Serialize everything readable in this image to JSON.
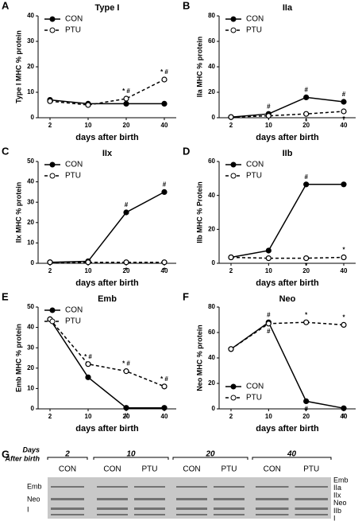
{
  "chart_data": [
    {
      "type": "line",
      "panel": "A",
      "title": "Type I",
      "ylabel": "Type I MHC % protein",
      "xlabel": "days after birth",
      "categories": [
        "2",
        "10",
        "20",
        "40"
      ],
      "ylim": [
        0,
        40
      ],
      "yticks": [
        0,
        10,
        20,
        30,
        40
      ],
      "legend": "upper left",
      "series": [
        {
          "name": "CON",
          "color": "#000000",
          "values": [
            7,
            5.5,
            5.5,
            5.5
          ],
          "annotations": [
            null,
            null,
            null,
            null
          ]
        },
        {
          "name": "PTU",
          "color": "#000000",
          "values": [
            6.5,
            5,
            7.5,
            15
          ],
          "annotations": [
            null,
            null,
            "* #",
            "* #"
          ]
        }
      ]
    },
    {
      "type": "line",
      "panel": "B",
      "title": "IIa",
      "ylabel": "IIa MHC % protein",
      "xlabel": "days after birth",
      "categories": [
        "2",
        "10",
        "20",
        "40"
      ],
      "ylim": [
        0,
        80
      ],
      "yticks": [
        0,
        20,
        40,
        60,
        80
      ],
      "legend": "upper left",
      "series": [
        {
          "name": "CON",
          "color": "#000000",
          "values": [
            0.5,
            3,
            16,
            12.5
          ],
          "annotations": [
            null,
            "#",
            "#",
            "#"
          ]
        },
        {
          "name": "PTU",
          "color": "#000000",
          "values": [
            0.5,
            1.5,
            3,
            5
          ],
          "annotations": [
            null,
            null,
            "*",
            "*"
          ]
        }
      ]
    },
    {
      "type": "line",
      "panel": "C",
      "title": "IIx",
      "ylabel": "IIx MHC % protein",
      "xlabel": "days after birth",
      "categories": [
        "2",
        "10",
        "20",
        "40"
      ],
      "ylim": [
        0,
        50
      ],
      "yticks": [
        0,
        10,
        20,
        30,
        40,
        50
      ],
      "legend": "upper left",
      "series": [
        {
          "name": "CON",
          "color": "#000000",
          "values": [
            0.5,
            1,
            25,
            35
          ],
          "annotations": [
            null,
            null,
            "#",
            "#"
          ]
        },
        {
          "name": "PTU",
          "color": "#000000",
          "values": [
            0.5,
            0.5,
            0.5,
            0.5
          ],
          "annotations": [
            null,
            null,
            "*",
            "*"
          ]
        }
      ]
    },
    {
      "type": "line",
      "panel": "D",
      "title": "IIb",
      "ylabel": "IIb MHC % Protein",
      "xlabel": "days after birth",
      "categories": [
        "2",
        "10",
        "20",
        "40"
      ],
      "ylim": [
        0,
        60
      ],
      "yticks": [
        0,
        20,
        40,
        60
      ],
      "legend": "upper left",
      "series": [
        {
          "name": "CON",
          "color": "#000000",
          "values": [
            3.5,
            7.5,
            46.5,
            46.5
          ],
          "annotations": [
            null,
            null,
            "#",
            null
          ]
        },
        {
          "name": "PTU",
          "color": "#000000",
          "values": [
            3.5,
            3,
            3,
            3.5
          ],
          "annotations": [
            null,
            "*",
            "*",
            "*"
          ]
        }
      ]
    },
    {
      "type": "line",
      "panel": "E",
      "title": "Emb",
      "ylabel": "Emb MHC % protein",
      "xlabel": "days after birth",
      "categories": [
        "2",
        "10",
        "20",
        "40"
      ],
      "ylim": [
        0,
        50
      ],
      "yticks": [
        0,
        10,
        20,
        30,
        40,
        50
      ],
      "legend": "upper left",
      "series": [
        {
          "name": "CON",
          "color": "#000000",
          "values": [
            44,
            15.5,
            0.5,
            0.5
          ],
          "annotations": [
            null,
            null,
            "#",
            null
          ]
        },
        {
          "name": "PTU",
          "color": "#000000",
          "values": [
            44,
            22,
            18.5,
            11
          ],
          "annotations": [
            null,
            "* #",
            "* #",
            "* #"
          ]
        }
      ]
    },
    {
      "type": "line",
      "panel": "F",
      "title": "Neo",
      "ylabel": "Neo MHC % protein",
      "xlabel": "days after birth",
      "categories": [
        "2",
        "10",
        "20",
        "40"
      ],
      "ylim": [
        0,
        80
      ],
      "yticks": [
        0,
        20,
        40,
        60,
        80
      ],
      "legend": "lower left",
      "series": [
        {
          "name": "CON",
          "color": "#000000",
          "values": [
            47,
            68,
            6,
            0.5
          ],
          "annotations": [
            null,
            "#",
            "#",
            "#"
          ]
        },
        {
          "name": "PTU",
          "color": "#000000",
          "values": [
            47,
            67,
            68,
            66
          ],
          "annotations": [
            null,
            "#",
            "*",
            "*"
          ]
        }
      ]
    }
  ],
  "gel": {
    "panel": "G",
    "header": [
      "Days",
      "After birth"
    ],
    "days": [
      "2",
      "10",
      "20",
      "40"
    ],
    "lanes": [
      "CON",
      "CON",
      "PTU",
      "CON",
      "PTU",
      "CON",
      "PTU"
    ],
    "left_labels": [
      "Emb",
      "Neo",
      "I"
    ],
    "right_labels": [
      "Emb",
      "IIa",
      "IIx",
      "Neo",
      "IIb",
      "I"
    ]
  }
}
